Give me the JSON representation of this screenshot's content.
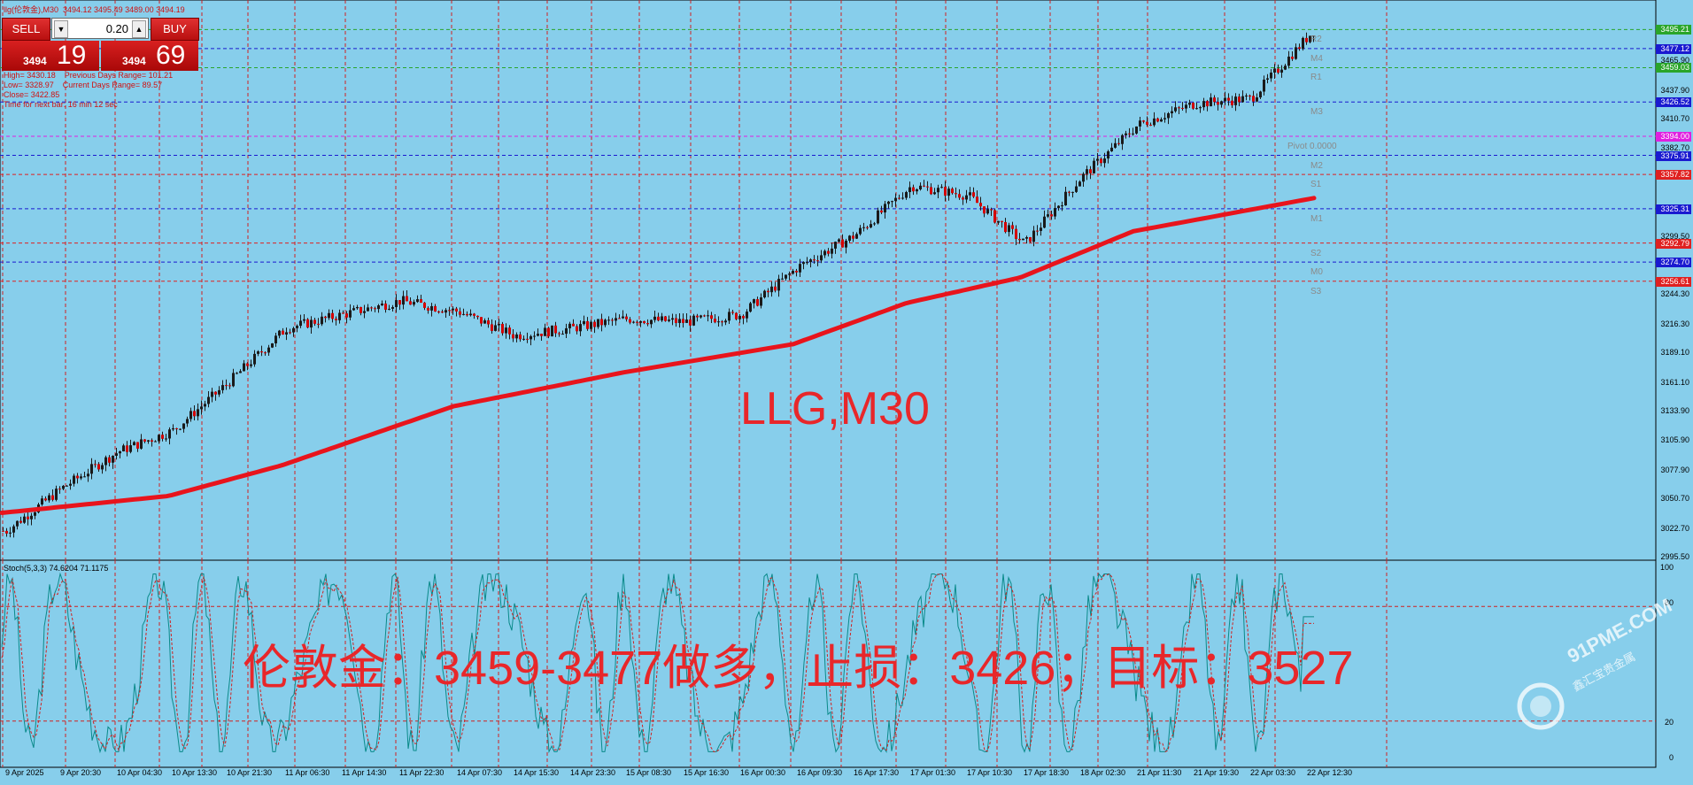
{
  "header": {
    "symbol_line": "llg(伦敦金),M30  3494.12 3495.49 3489.00 3494.19",
    "info_lines": [
      "High= 3430.18    Previous Days Range= 101.21",
      "Low= 3328.97    Current Days Range= 89.57",
      "Close= 3422.85",
      "Time for next bar: 16 min 12 sec"
    ]
  },
  "trade_panel": {
    "sell_label": "SELL",
    "buy_label": "BUY",
    "lot_value": "0.20",
    "bid_small": "3494",
    "bid_big": "19",
    "ask_small": "3494",
    "ask_big": "69"
  },
  "chart_title": "LLG,M30",
  "annotation": "伦敦金：3459-3477做多，止损：3426；目标：3527",
  "pivot_labels": [
    "R2",
    "M4",
    "R1",
    "M3",
    "Pivot  0.0000",
    "M2",
    "S1",
    "M1",
    "S2",
    "M0",
    "S3"
  ],
  "price_axis_labels": [
    "3437.90",
    "3410.70",
    "3382.70",
    "3299.50",
    "3244.30",
    "3216.30",
    "3189.10",
    "3161.10",
    "3133.90",
    "3105.90",
    "3077.90",
    "3050.70",
    "3022.70",
    "2995.50",
    "3465.90"
  ],
  "price_tags": [
    {
      "text": "3495.21",
      "color": "#2aa52a"
    },
    {
      "text": "3477.12",
      "color": "#1a1ad0"
    },
    {
      "text": "3459.03",
      "color": "#2aa52a"
    },
    {
      "text": "3426.52",
      "color": "#1a1ad0"
    },
    {
      "text": "3394.00",
      "color": "#e020e0"
    },
    {
      "text": "3375.91",
      "color": "#1a1ad0"
    },
    {
      "text": "3357.82",
      "color": "#e02020"
    },
    {
      "text": "3325.31",
      "color": "#1a1ad0"
    },
    {
      "text": "3292.79",
      "color": "#e02020"
    },
    {
      "text": "3274.70",
      "color": "#1a1ad0"
    },
    {
      "text": "3256.61",
      "color": "#e02020"
    }
  ],
  "time_labels": [
    "9 Apr 2025",
    "9 Apr 20:30",
    "10 Apr 04:30",
    "10 Apr 13:30",
    "10 Apr 21:30",
    "11 Apr 06:30",
    "11 Apr 14:30",
    "11 Apr 22:30",
    "14 Apr 07:30",
    "14 Apr 15:30",
    "14 Apr 23:30",
    "15 Apr 08:30",
    "15 Apr 16:30",
    "16 Apr 00:30",
    "16 Apr 09:30",
    "16 Apr 17:30",
    "17 Apr 01:30",
    "17 Apr 10:30",
    "17 Apr 18:30",
    "18 Apr 02:30",
    "21 Apr 11:30",
    "21 Apr 19:30",
    "22 Apr 03:30",
    "22 Apr 12:30"
  ],
  "stochastic": {
    "title": "Stoch(5,3,3) 74.6204 71.1175",
    "levels": [
      "100",
      "80",
      "20",
      "0"
    ]
  },
  "watermark": {
    "text": "91PME.COM",
    "sub": "鑫汇宝贵金属"
  },
  "chart_data": {
    "type": "candlestick",
    "title": "LLG,M30",
    "ylim": [
      2995.5,
      3498
    ],
    "moving_average": {
      "color": "#e8141c",
      "x": [
        "9 Apr 2025",
        "10 Apr 13:30",
        "11 Apr 06:30",
        "14 Apr 07:30",
        "15 Apr 08:30",
        "16 Apr 09:30",
        "17 Apr 01:30",
        "17 Apr 18:30",
        "21 Apr 11:30",
        "22 Apr 12:30"
      ],
      "y": [
        3037,
        3053,
        3082,
        3138,
        3170,
        3197,
        3236,
        3260,
        3304,
        3336
      ]
    },
    "price_path": {
      "x": [
        "9 Apr 2025",
        "9 Apr 20:30",
        "10 Apr 04:30",
        "10 Apr 13:30",
        "10 Apr 21:30",
        "11 Apr 06:30",
        "11 Apr 14:30",
        "11 Apr 22:30",
        "14 Apr 07:30",
        "14 Apr 15:30",
        "14 Apr 23:30",
        "15 Apr 08:30",
        "15 Apr 16:30",
        "16 Apr 00:30",
        "16 Apr 09:30",
        "16 Apr 17:30",
        "17 Apr 01:30",
        "17 Apr 10:30",
        "17 Apr 18:30",
        "18 Apr 02:30",
        "21 Apr 11:30",
        "21 Apr 19:30",
        "22 Apr 03:30",
        "22 Apr 12:30"
      ],
      "y": [
        3020,
        3060,
        3095,
        3115,
        3160,
        3212,
        3225,
        3238,
        3228,
        3205,
        3212,
        3221,
        3218,
        3225,
        3270,
        3300,
        3347,
        3338,
        3292,
        3355,
        3405,
        3425,
        3430,
        3494
      ]
    },
    "stochastic": {
      "k_last": 74.6204,
      "d_last": 71.1175,
      "levels": [
        20,
        80
      ]
    }
  }
}
